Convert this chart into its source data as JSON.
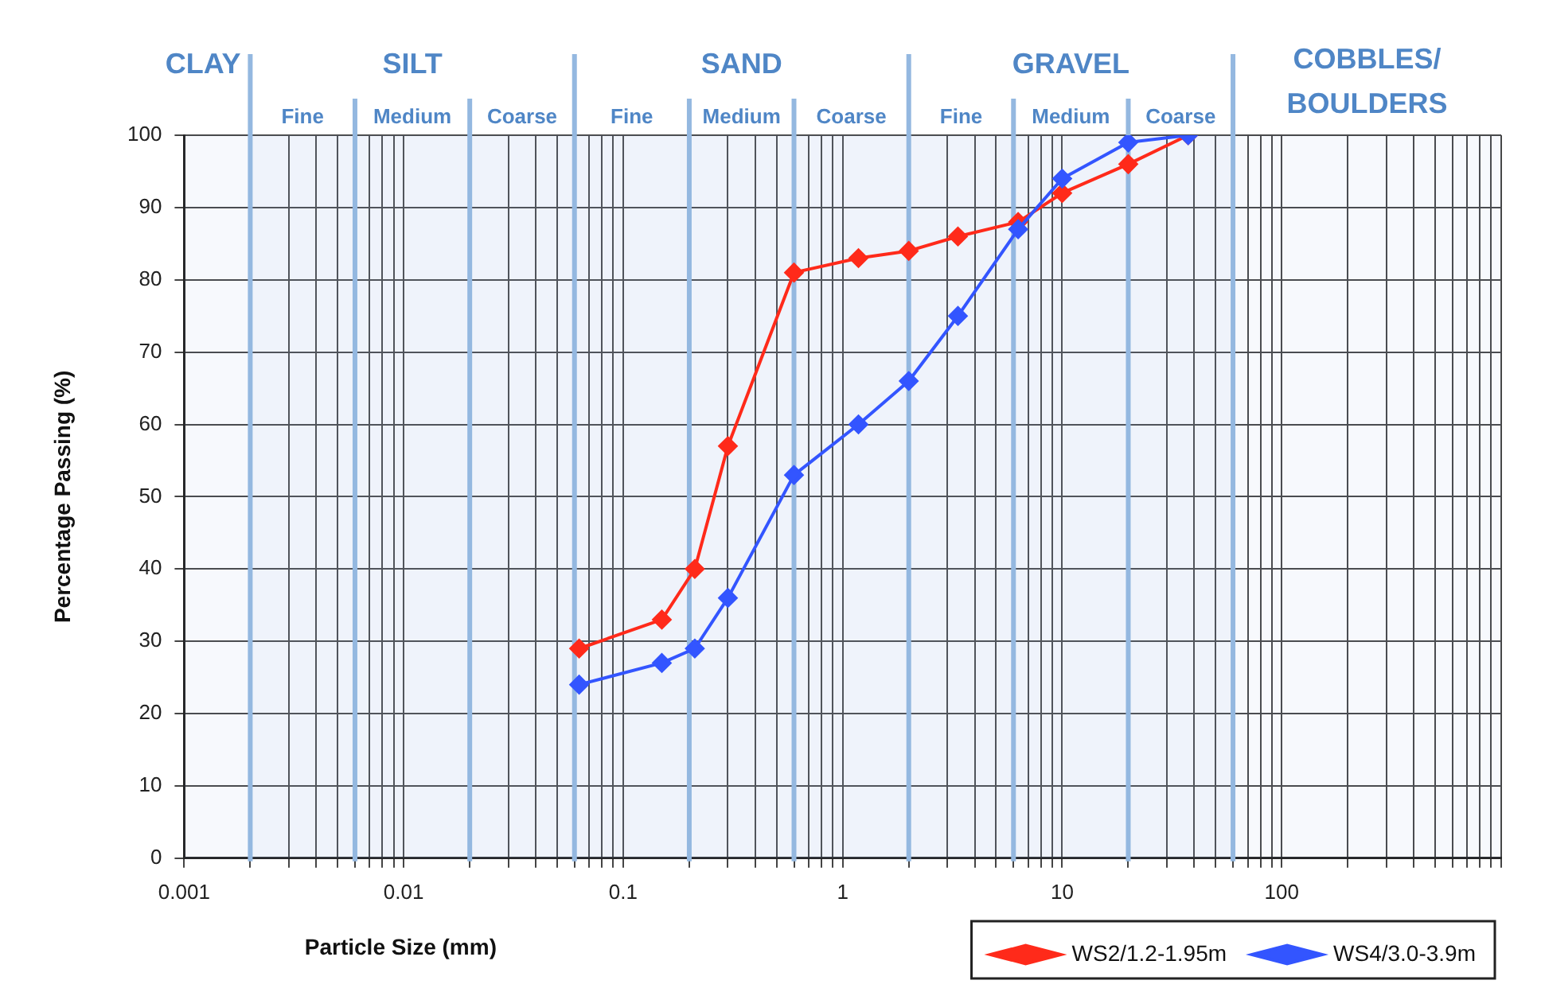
{
  "chart_data": {
    "type": "line",
    "xlabel": "Particle Size (mm)",
    "ylabel": "Percentage Passing (%)",
    "log": "x",
    "grid": true,
    "legend": "bottom right",
    "marker": "diamond",
    "line_style": "solid",
    "xlim": [
      0.001,
      1000
    ],
    "xticks": [
      0.001,
      {
        "value": 0.002,
        "label": null
      },
      {
        "value": 0.003,
        "label": null
      },
      {
        "value": 0.004,
        "label": null
      },
      {
        "value": 0.005,
        "label": null
      },
      {
        "value": 0.006,
        "label": null
      },
      {
        "value": 0.007,
        "label": null
      },
      {
        "value": 0.008,
        "label": null
      },
      {
        "value": 0.009,
        "label": null
      },
      0.01,
      {
        "value": 0.02,
        "label": null
      },
      {
        "value": 0.03,
        "label": null
      },
      {
        "value": 0.04,
        "label": null
      },
      {
        "value": 0.05,
        "label": null
      },
      {
        "value": 0.06,
        "label": null
      },
      {
        "value": 0.07,
        "label": null
      },
      {
        "value": 0.08,
        "label": null
      },
      {
        "value": 0.09,
        "label": null
      },
      0.1,
      {
        "value": 0.2,
        "label": null
      },
      {
        "value": 0.3,
        "label": null
      },
      {
        "value": 0.4,
        "label": null
      },
      {
        "value": 0.5,
        "label": null
      },
      {
        "value": 0.6,
        "label": null
      },
      {
        "value": 0.7,
        "label": null
      },
      {
        "value": 0.8,
        "label": null
      },
      {
        "value": 0.9,
        "label": null
      },
      1,
      {
        "value": 2,
        "label": null
      },
      {
        "value": 3,
        "label": null
      },
      {
        "value": 4,
        "label": null
      },
      {
        "value": 5,
        "label": null
      },
      {
        "value": 6,
        "label": null
      },
      {
        "value": 7,
        "label": null
      },
      {
        "value": 8,
        "label": null
      },
      {
        "value": 9,
        "label": null
      },
      10,
      {
        "value": 20,
        "label": null
      },
      {
        "value": 30,
        "label": null
      },
      {
        "value": 40,
        "label": null
      },
      {
        "value": 50,
        "label": null
      },
      {
        "value": 60,
        "label": null
      },
      {
        "value": 70,
        "label": null
      },
      {
        "value": 80,
        "label": null
      },
      {
        "value": 90,
        "label": null
      },
      100,
      {
        "value": 200,
        "label": null
      },
      {
        "value": 300,
        "label": null
      },
      {
        "value": 400,
        "label": null
      },
      {
        "value": 500,
        "label": null
      },
      {
        "value": 600,
        "label": null
      },
      {
        "value": 700,
        "label": null
      },
      {
        "value": 800,
        "label": null
      },
      {
        "value": 900,
        "label": null
      },
      {
        "value": 1000,
        "label": null
      }
    ],
    "ylim": [
      0,
      100
    ],
    "yticks": [
      0,
      10,
      20,
      30,
      40,
      50,
      60,
      70,
      80,
      90,
      100
    ],
    "x": [
      0.063,
      0.15,
      0.212,
      0.3,
      0.6,
      1.18,
      2,
      3.35,
      6.3,
      10,
      20,
      37.5
    ],
    "series": [
      {
        "name": "WS2/1.2-1.95m",
        "color": "#ff2a1a",
        "values": [
          29,
          33,
          40,
          57,
          81,
          83,
          84,
          86,
          88,
          92,
          96,
          100
        ]
      },
      {
        "name": "WS4/3.0-3.9m",
        "color": "#3355ff",
        "values": [
          24,
          27,
          29,
          36,
          53,
          60,
          66,
          75,
          87,
          94,
          99,
          100
        ]
      }
    ],
    "bands": [
      {
        "axis": "x",
        "from": 0.001,
        "to": 0.002,
        "label": "CLAY",
        "color": "#94b8e0"
      },
      {
        "axis": "x",
        "from": 0.002,
        "to": 0.06,
        "label": "SILT",
        "color": "#94b8e0"
      },
      {
        "axis": "x",
        "from": 0.06,
        "to": 2,
        "label": "SAND",
        "color": "#94b8e0"
      },
      {
        "axis": "x",
        "from": 2,
        "to": 60,
        "label": "GRAVEL",
        "color": "#94b8e0"
      },
      {
        "axis": "x",
        "from": 60,
        "to": 1000,
        "label": "COBBLES/ BOULDERS",
        "color": "#94b8e0"
      },
      {
        "axis": "x",
        "from": 0.002,
        "to": 0.006,
        "label": "Fine",
        "color": "#94b8e0"
      },
      {
        "axis": "x",
        "from": 0.006,
        "to": 0.02,
        "label": "Medium",
        "color": "#94b8e0"
      },
      {
        "axis": "x",
        "from": 0.02,
        "to": 0.06,
        "label": "Coarse",
        "color": "#94b8e0"
      },
      {
        "axis": "x",
        "from": 0.06,
        "to": 0.2,
        "label": "Fine",
        "color": "#94b8e0"
      },
      {
        "axis": "x",
        "from": 0.2,
        "to": 0.6,
        "label": "Medium",
        "color": "#94b8e0"
      },
      {
        "axis": "x",
        "from": 0.6,
        "to": 2,
        "label": "Coarse",
        "color": "#94b8e0"
      },
      {
        "axis": "x",
        "from": 2,
        "to": 6,
        "label": "Fine",
        "color": "#94b8e0"
      },
      {
        "axis": "x",
        "from": 6,
        "to": 20,
        "label": "Medium",
        "color": "#94b8e0"
      },
      {
        "axis": "x",
        "from": 20,
        "to": 60,
        "label": "Coarse",
        "color": "#94b8e0"
      }
    ]
  }
}
